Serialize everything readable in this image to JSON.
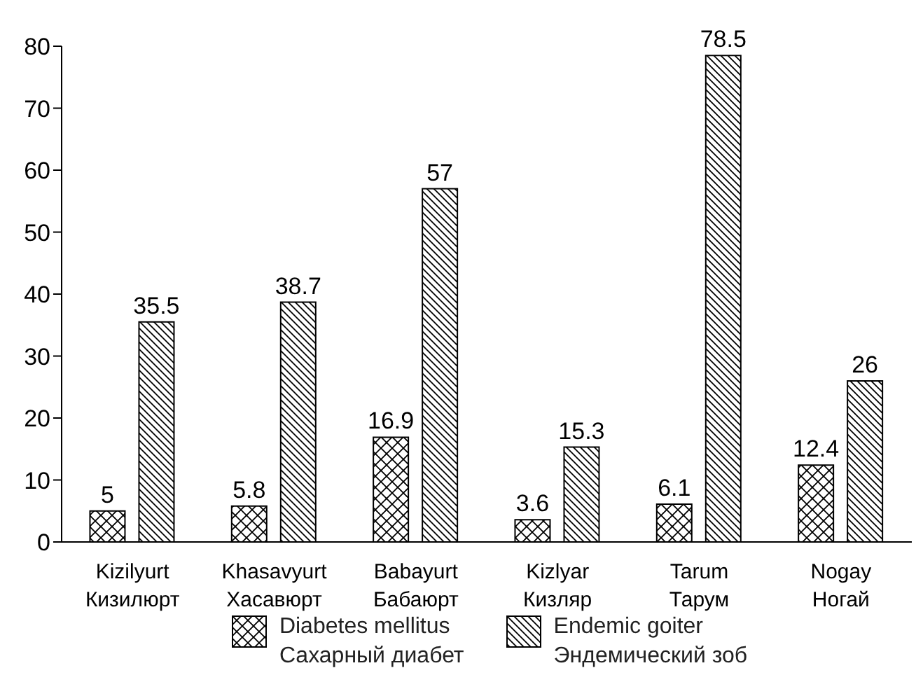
{
  "chart_data": {
    "type": "bar",
    "categories": [
      "Kizilyurt\nКизилюрт",
      "Khasavyurt\nХасавюрт",
      "Babayurt\nБабаюрт",
      "Kizlyar\nКизляр",
      "Tarum\nТарум",
      "Nogay\nНогай"
    ],
    "series": [
      {
        "name": "Diabetes mellitus\nСахарный диабет",
        "color": "#000000",
        "values": [
          5,
          5.8,
          16.9,
          3.6,
          6.1,
          12.4
        ]
      },
      {
        "name": "Endemic goiter\nЭндемический зоб",
        "color": "#000000",
        "values": [
          35.5,
          38.7,
          57,
          15.3,
          78.5,
          26
        ]
      }
    ],
    "ylim": [
      0,
      80
    ],
    "yticks": [
      0,
      10,
      20,
      30,
      40,
      50,
      60,
      70,
      80
    ],
    "grid": false,
    "legend": "bottom",
    "data_labels": true
  }
}
